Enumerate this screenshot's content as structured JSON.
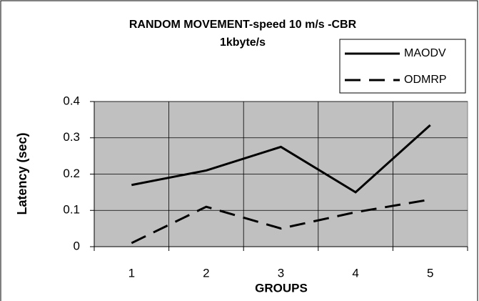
{
  "chart_data": {
    "type": "line",
    "title": [
      "RANDOM MOVEMENT-speed 10 m/s -CBR",
      "1kbyte/s"
    ],
    "x_label": "GROUPS",
    "y_label": "Latency (sec)",
    "categories": [
      "1",
      "2",
      "3",
      "4",
      "5"
    ],
    "series": [
      {
        "name": "MAODV",
        "color": "#000000",
        "dashed": false,
        "values": [
          0.17,
          0.21,
          0.275,
          0.15,
          0.335
        ]
      },
      {
        "name": "ODMRP",
        "color": "#000000",
        "dashed": true,
        "values": [
          0.01,
          0.11,
          0.05,
          0.095,
          0.13
        ]
      }
    ],
    "ylim": [
      0,
      0.4
    ],
    "yticks": [
      0,
      0.1,
      0.2,
      0.3,
      0.4
    ],
    "grid": true,
    "legend": "top-right"
  }
}
